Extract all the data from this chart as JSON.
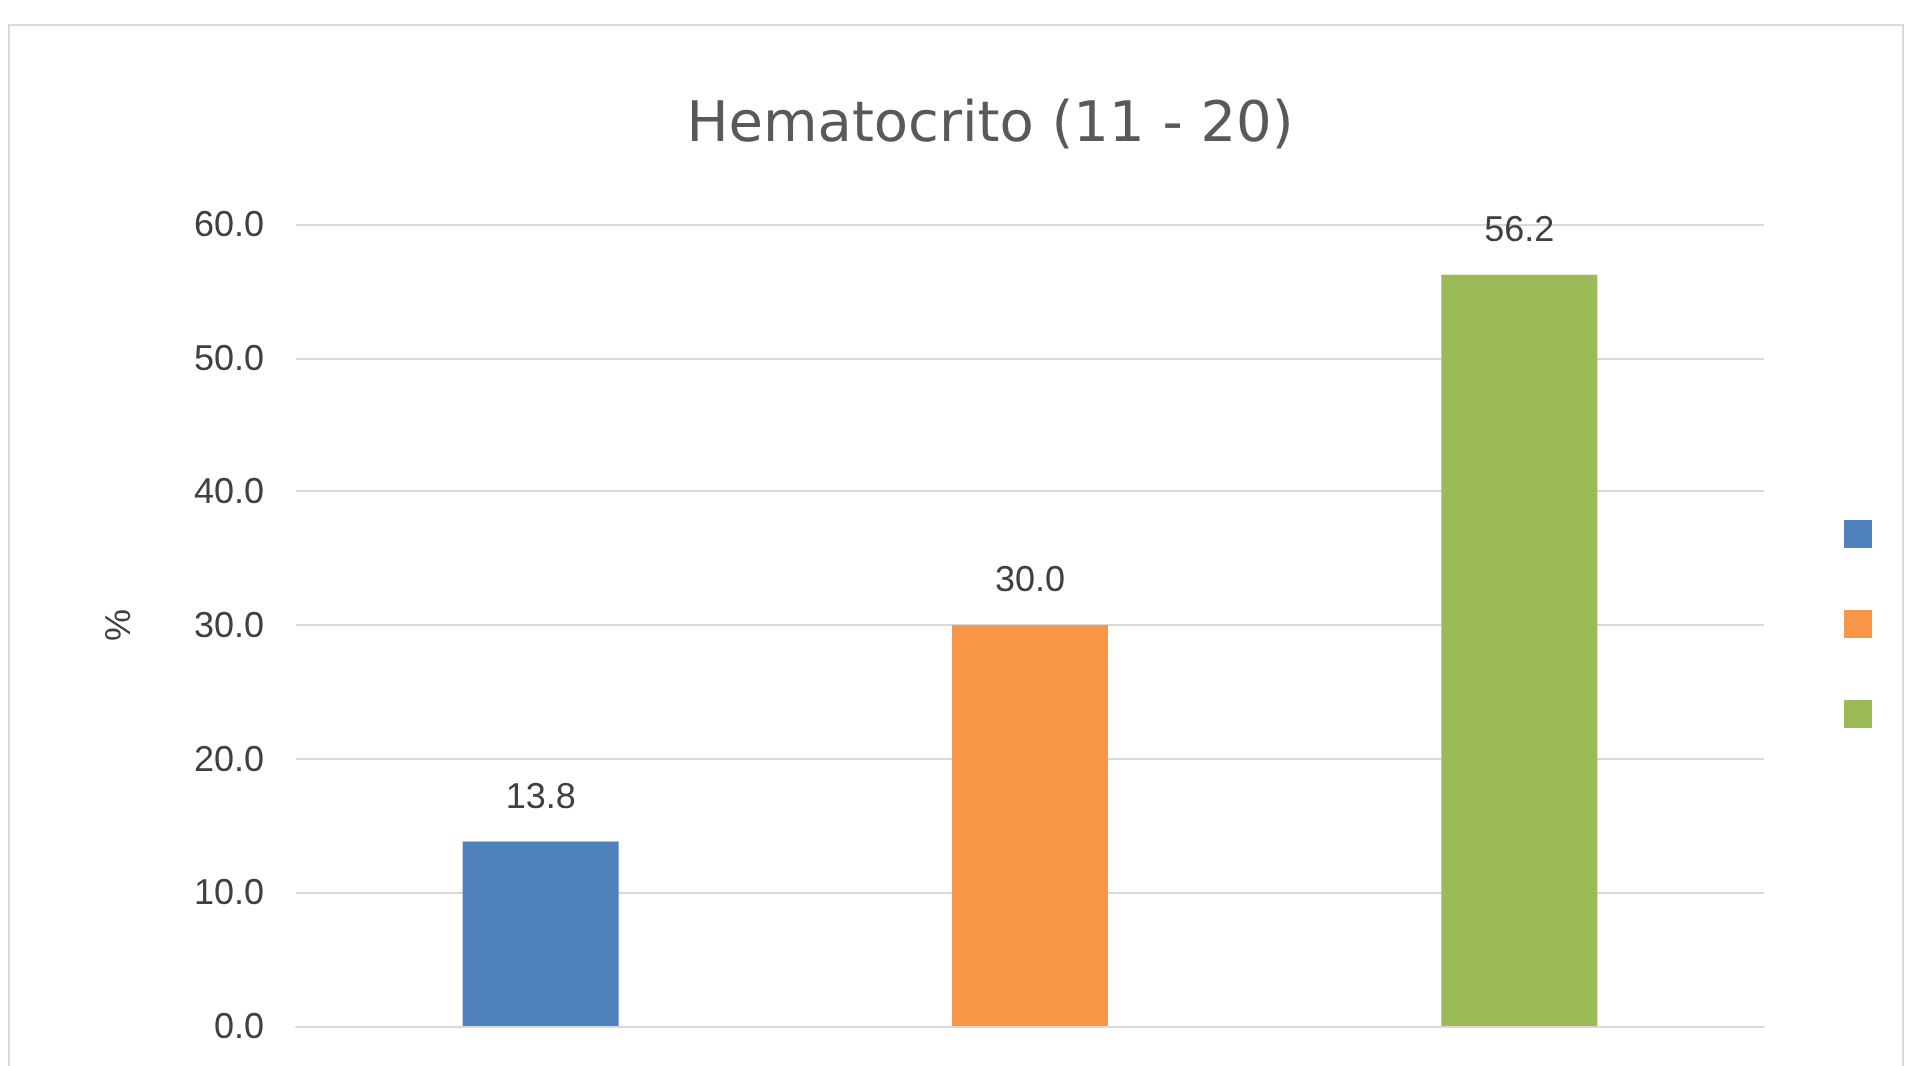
{
  "chart_data": {
    "type": "bar",
    "title": "Hematocrito (11 - 20)",
    "ylabel": "%",
    "categories": [
      null,
      null,
      null
    ],
    "series": [
      {
        "color": "#4f81bd",
        "values": [
          13.8,
          null,
          null
        ],
        "value_labels": [
          "13.8",
          null,
          null
        ]
      },
      {
        "color": "#f79646",
        "values": [
          null,
          30.0,
          null
        ],
        "value_labels": [
          null,
          "30.0",
          null
        ]
      },
      {
        "color": "#9bbb59",
        "values": [
          null,
          null,
          56.2
        ],
        "value_labels": [
          null,
          null,
          "56.2"
        ]
      }
    ],
    "ylim": [
      0,
      60
    ],
    "yticks": [
      {
        "value": 0,
        "label": "0.0"
      },
      {
        "value": 10,
        "label": "10.0"
      },
      {
        "value": 20,
        "label": "20.0"
      },
      {
        "value": 30,
        "label": "30.0"
      },
      {
        "value": 40,
        "label": "40.0"
      },
      {
        "value": 50,
        "label": "50.0"
      },
      {
        "value": 60,
        "label": "60.0"
      }
    ],
    "grid": "y"
  }
}
